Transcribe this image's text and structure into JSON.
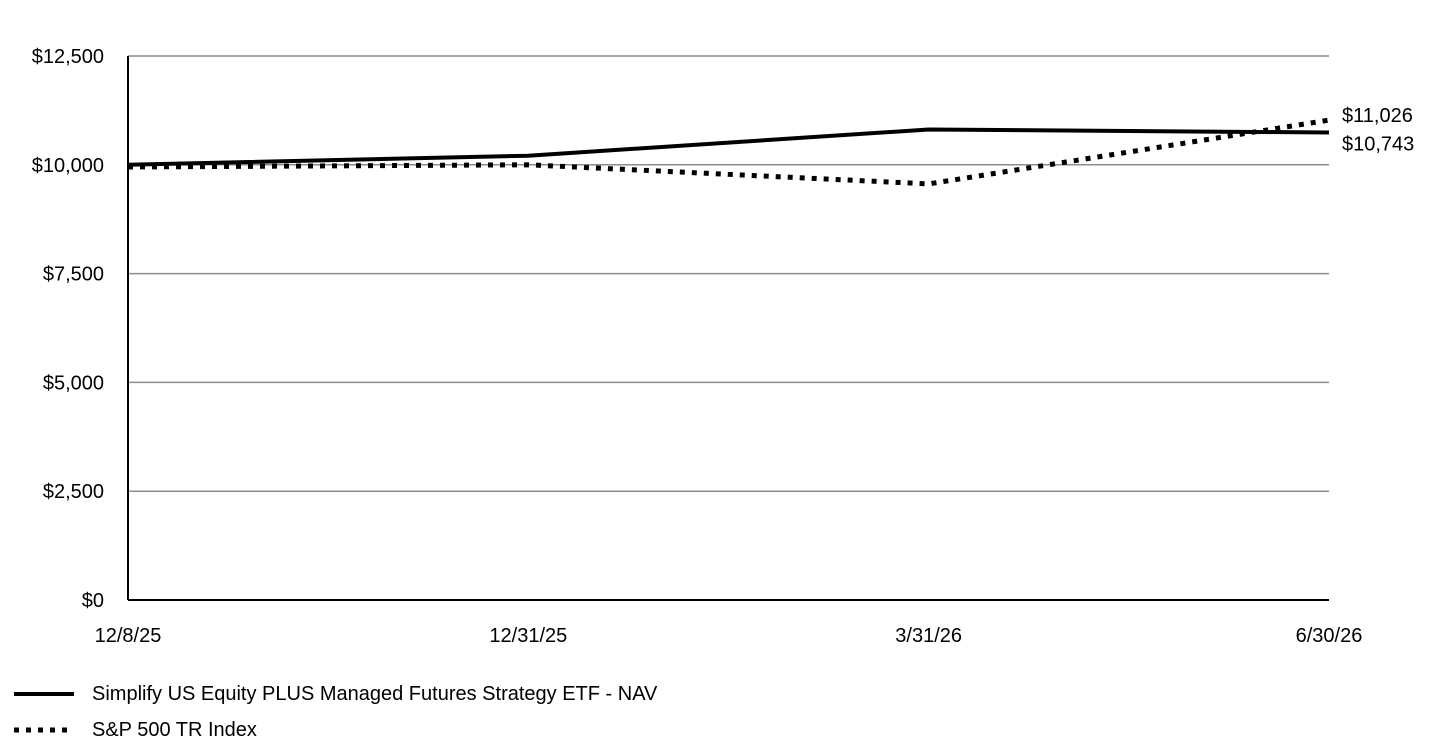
{
  "chart_data": {
    "type": "line",
    "title": "",
    "xlabel": "",
    "ylabel": "",
    "x": [
      "12/8/25",
      "12/31/25",
      "3/31/26",
      "6/30/26"
    ],
    "ylim": [
      0,
      12500
    ],
    "yticks": [
      0,
      2500,
      5000,
      7500,
      10000,
      12500
    ],
    "ytick_labels": [
      "$0",
      "$2,500",
      "$5,000",
      "$7,500",
      "$10,000",
      "$12,500"
    ],
    "grid": "horizontal",
    "legend_position": "bottom-left",
    "series": [
      {
        "name": "Simplify US Equity PLUS Managed Futures Strategy ETF - NAV",
        "values": [
          10000,
          10210,
          10810,
          10743
        ],
        "style": "solid",
        "end_label": "$10,743",
        "color": "#000000"
      },
      {
        "name": "S&P 500 TR Index",
        "values": [
          9950,
          10000,
          9560,
          11026
        ],
        "style": "dotted",
        "end_label": "$11,026",
        "color": "#000000"
      }
    ]
  }
}
